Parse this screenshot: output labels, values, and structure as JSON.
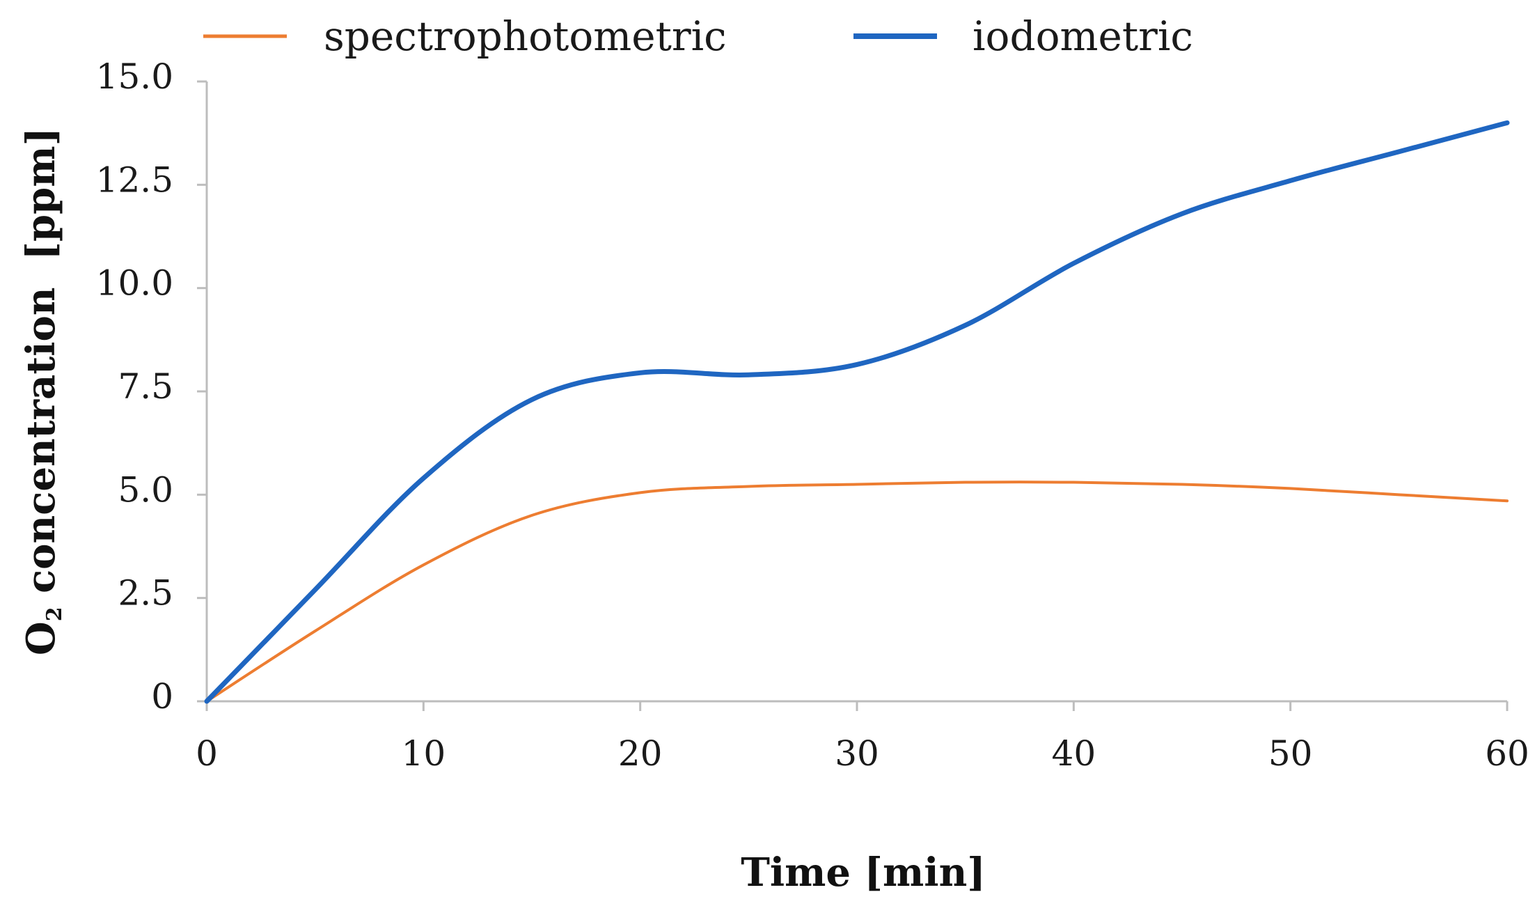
{
  "chart_data": {
    "type": "line",
    "title": "",
    "xlabel": "Time [min]",
    "ylabel_parts": {
      "main": "O",
      "subscript": "2",
      "rest": " concentration  [ppm]"
    },
    "xlim": [
      0,
      60
    ],
    "ylim": [
      0,
      15
    ],
    "x_ticks": [
      0,
      10,
      20,
      30,
      40,
      50,
      60
    ],
    "x_tick_labels": [
      "0",
      "10",
      "20",
      "30",
      "40",
      "50",
      "60"
    ],
    "y_ticks": [
      0,
      2.5,
      5,
      7.5,
      10,
      12.5,
      15
    ],
    "y_tick_labels": [
      "0",
      "2.5",
      "5.0",
      "7.5",
      "10.0",
      "12.5",
      "15.0"
    ],
    "grid": false,
    "legend_position": "top",
    "series": [
      {
        "name": "spectrophotometric",
        "color": "#ED7D31",
        "x": [
          0,
          5,
          10,
          15,
          20,
          25,
          30,
          35,
          40,
          45,
          50,
          55,
          60
        ],
        "values": [
          0,
          1.7,
          3.3,
          4.5,
          5.05,
          5.2,
          5.25,
          5.3,
          5.3,
          5.25,
          5.15,
          5.0,
          4.85
        ]
      },
      {
        "name": "iodometric",
        "color": "#1F66C1",
        "x": [
          0,
          5,
          10,
          15,
          20,
          25,
          30,
          35,
          40,
          45,
          50,
          55,
          60
        ],
        "values": [
          0,
          2.7,
          5.4,
          7.3,
          7.95,
          7.9,
          8.15,
          9.1,
          10.6,
          11.8,
          12.6,
          13.3,
          14.0
        ]
      }
    ]
  }
}
